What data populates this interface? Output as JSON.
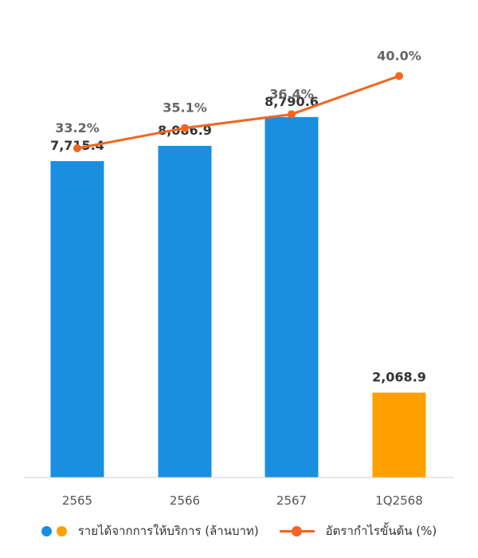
{
  "chart_data": {
    "type": "bar",
    "categories": [
      "2565",
      "2566",
      "2567",
      "1Q2568"
    ],
    "series": [
      {
        "name": "รายได้จากการให้บริการ (ล้านบาท)",
        "type": "bar",
        "values": [
          7715.4,
          8086.9,
          8790.6,
          2068.9
        ],
        "value_labels": [
          "7,715.4",
          "8,086.9",
          "8,790.6",
          "2,068.9"
        ],
        "colors": [
          "#1a8fe0",
          "#1a8fe0",
          "#1a8fe0",
          "#ffa000"
        ]
      },
      {
        "name": "อัตรากำไรขั้นต้น (%)",
        "type": "line",
        "values": [
          33.2,
          35.1,
          36.4,
          40.0
        ],
        "value_labels": [
          "33.2%",
          "35.1%",
          "36.4%",
          "40.0%"
        ],
        "color": "#f26522"
      }
    ],
    "ylim": [
      0,
      10400
    ],
    "line_ylim": [
      20,
      44
    ],
    "grid": false,
    "legend_position": "bottom"
  },
  "colors": {
    "bar_primary": "#1a8fe0",
    "bar_secondary": "#ffa000",
    "line": "#f26522",
    "axis": "#cfcfcf",
    "bar_label": "#333333",
    "line_label": "#666666",
    "tick_label": "#555555"
  }
}
